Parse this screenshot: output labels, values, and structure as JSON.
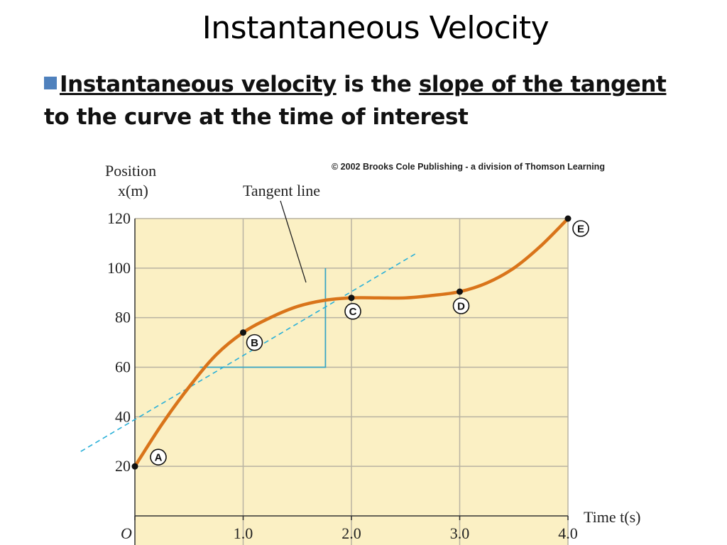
{
  "slide": {
    "title": "Instantaneous Velocity",
    "bullet": {
      "part1": "Instantaneous velocity",
      "part2": " is the ",
      "part3": "slope of the tangent",
      "part4": " to the curve at the time of interest"
    },
    "copyright": "© 2002 Brooks Cole Publishing - a division of Thomson Learning"
  },
  "colors": {
    "plot_background": "#fbf0c4",
    "curve": "#d9741a",
    "tangent": "#2ab0d8",
    "triangle": "#3aa6c4",
    "grid": "#b9b3a2",
    "bullet_accent": "#4f81bd"
  },
  "chart_data": {
    "type": "line",
    "ylabel_line1": "Position",
    "ylabel_line2": "x(m)",
    "xlabel": "Time t(s)",
    "xlim": [
      0,
      4.0
    ],
    "ylim": [
      0,
      120
    ],
    "grid": true,
    "x_ticks": [
      {
        "value": 0,
        "label": "O"
      },
      {
        "value": 1.0,
        "label": "1.0"
      },
      {
        "value": 2.0,
        "label": "2.0"
      },
      {
        "value": 3.0,
        "label": "3.0"
      },
      {
        "value": 4.0,
        "label": "4.0"
      }
    ],
    "y_ticks": [
      20,
      40,
      60,
      80,
      100,
      120
    ],
    "series": [
      {
        "x": [
          0,
          0.25,
          0.5,
          0.75,
          1.0,
          1.25,
          1.5,
          1.75,
          2.0,
          2.25,
          2.5,
          2.75,
          3.0,
          3.25,
          3.5,
          3.75,
          4.0
        ],
        "y": [
          20,
          37,
          52,
          65,
          74,
          80,
          84.5,
          87,
          88,
          88,
          88,
          89,
          90.5,
          94,
          100,
          109,
          120
        ]
      }
    ],
    "points": [
      {
        "label": "A",
        "x": 0,
        "y": 20
      },
      {
        "label": "B",
        "x": 1.0,
        "y": 74
      },
      {
        "label": "C",
        "x": 2.0,
        "y": 88
      },
      {
        "label": "D",
        "x": 3.0,
        "y": 90.5
      },
      {
        "label": "E",
        "x": 4.0,
        "y": 120
      }
    ],
    "tangent": {
      "label": "Tangent line",
      "x1": -0.5,
      "y1": 26,
      "x2": 2.6,
      "y2": 106
    },
    "slope_triangle": {
      "x_start": 0.6,
      "x_end": 1.76,
      "y_low": 60,
      "y_high": 100
    }
  }
}
